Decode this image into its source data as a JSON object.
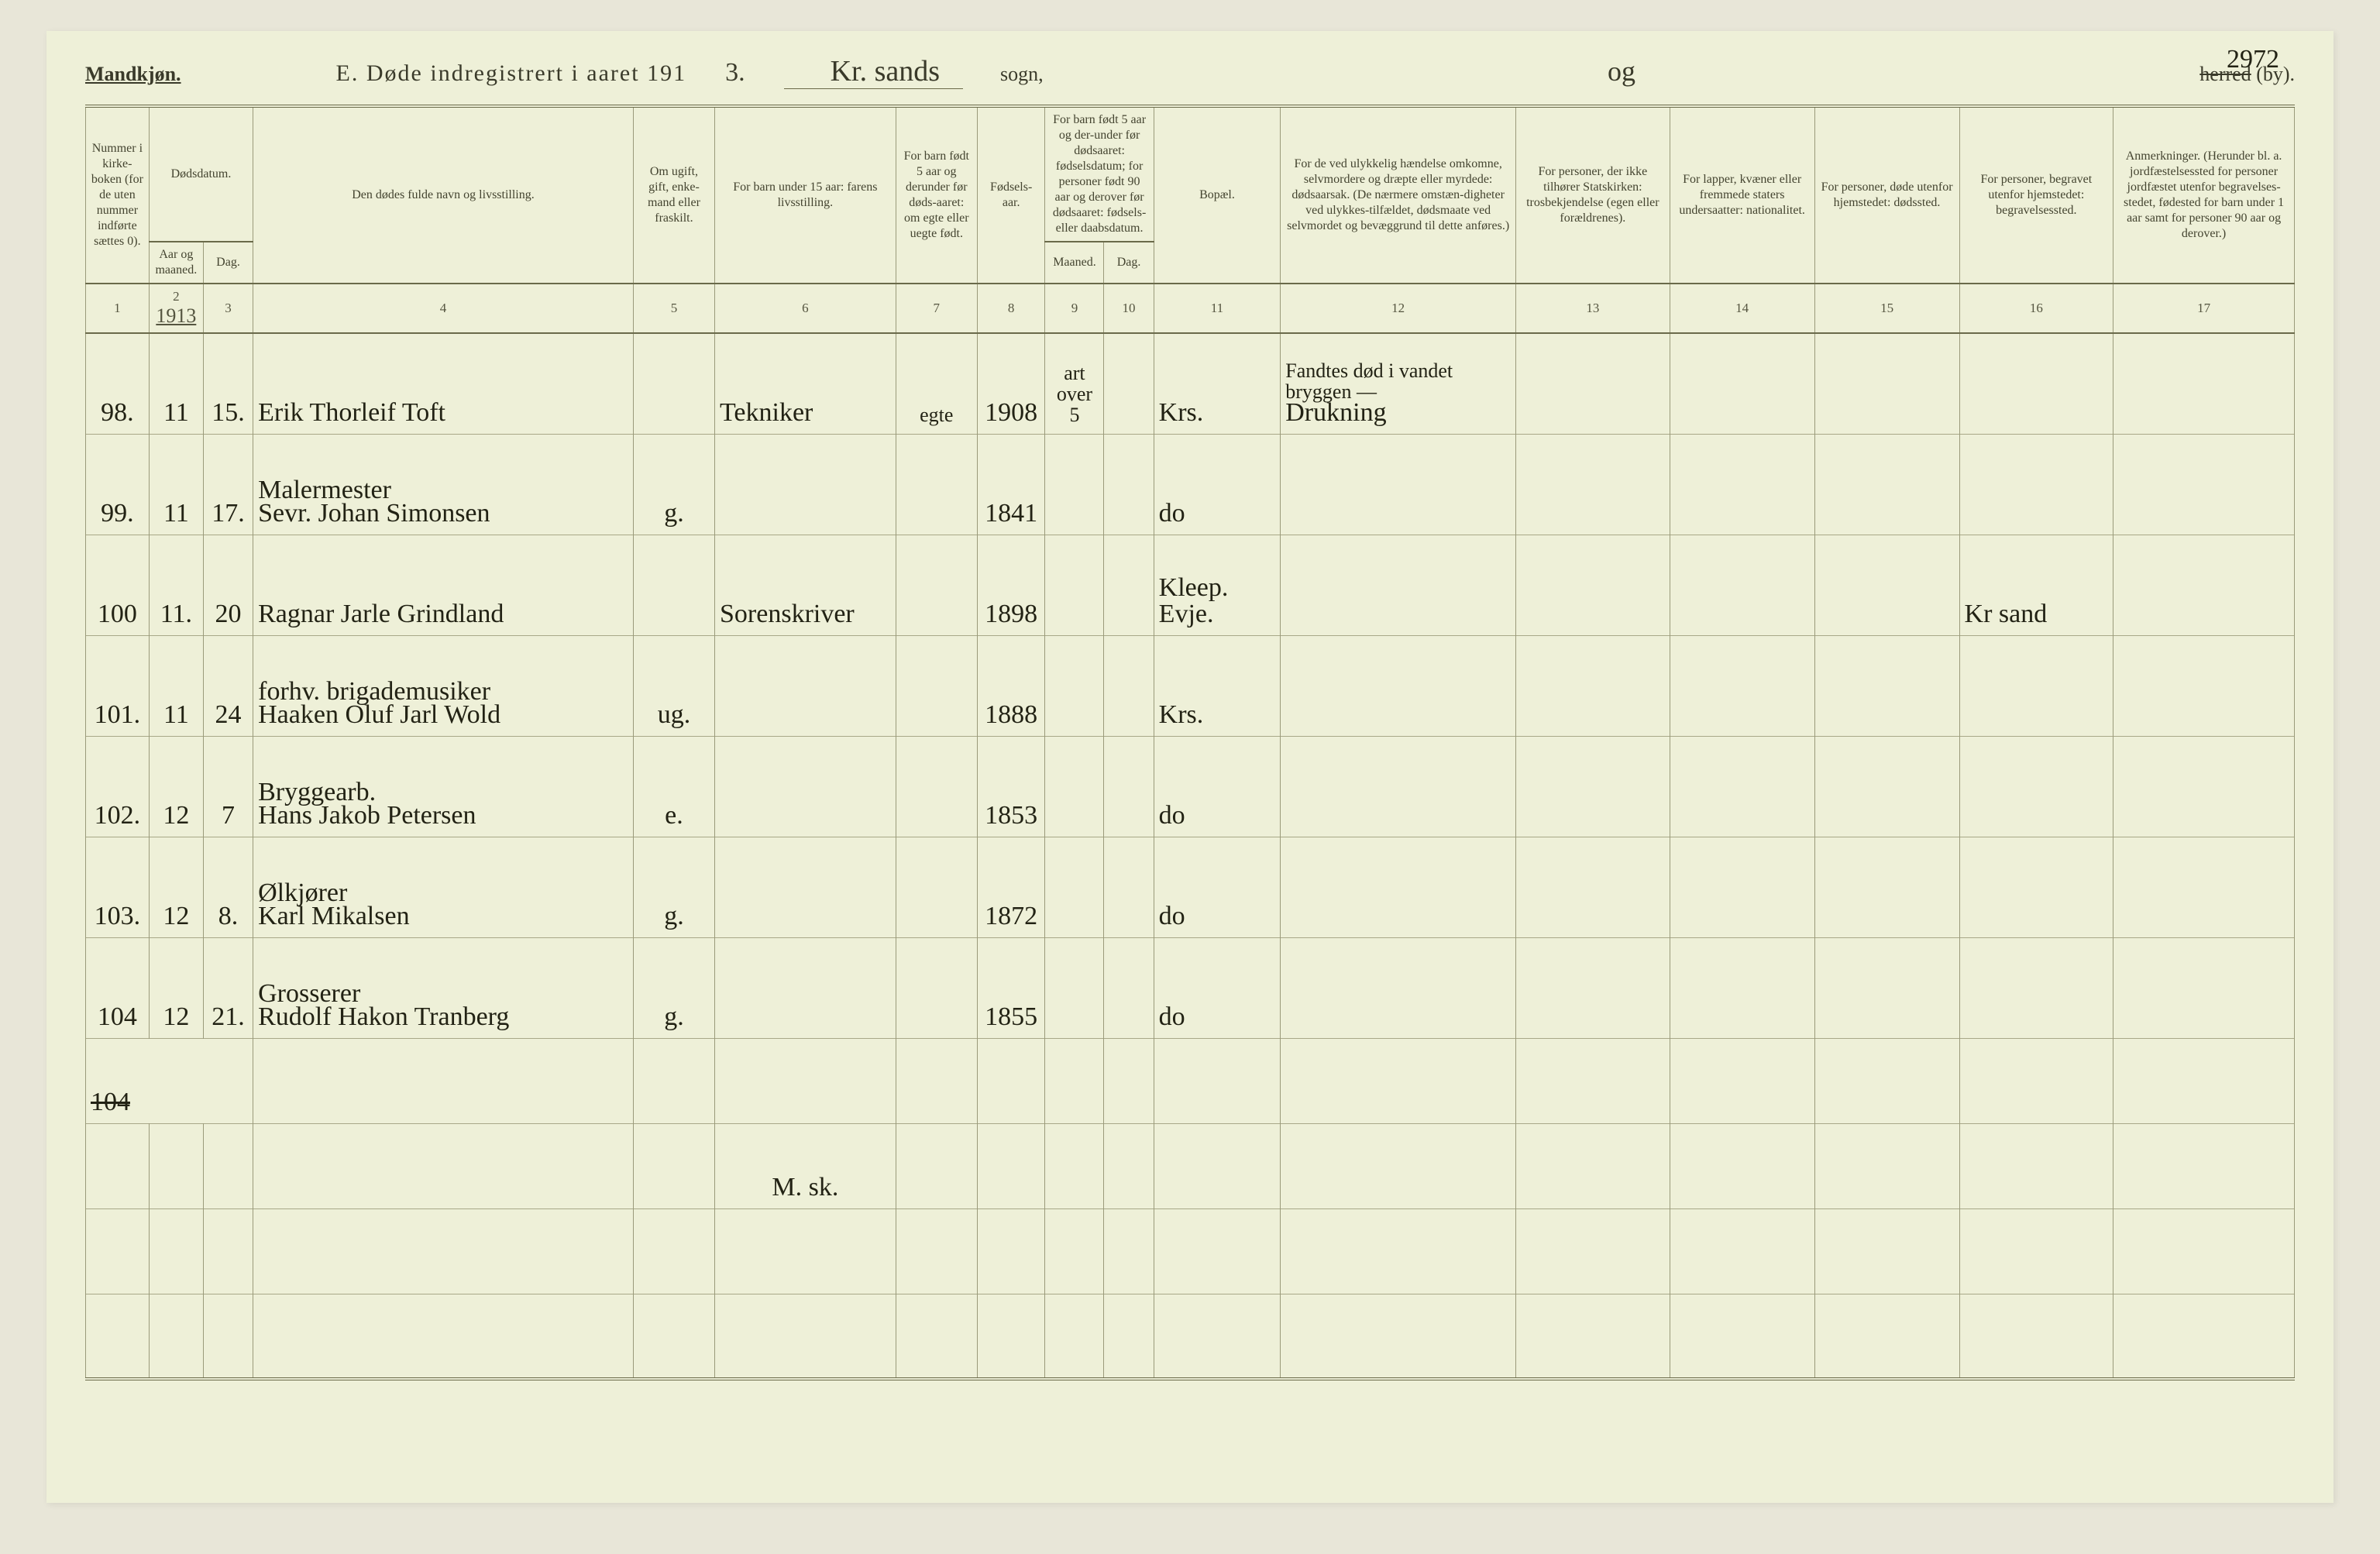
{
  "header": {
    "mandkjon": "Mandkjøn.",
    "title_prefix": "E.  Døde indregistrert i aaret 191",
    "year_suffix": "3.",
    "parish": "Kr. sands",
    "sogn": "sogn,",
    "og": "og",
    "herred_struck": "herred",
    "by_suffix": " (by).",
    "page_number": "2972"
  },
  "columns": {
    "c1": "Nummer i kirke-boken (for de uten nummer indførte sættes 0).",
    "c2_top": "Dødsdatum.",
    "c2a": "Aar og maaned.",
    "c2b": "Dag.",
    "c4": "Den dødes fulde navn og livsstilling.",
    "c5": "Om ugift, gift, enke-mand eller fraskilt.",
    "c6": "For barn under 15 aar: farens livsstilling.",
    "c7": "For barn født 5 aar og derunder før døds-aaret: om egte eller uegte født.",
    "c8": "Fødsels-aar.",
    "c9_top": "For barn født 5 aar og der-under før dødsaaret: fødselsdatum; for personer født 90 aar og derover før dødsaaret: fødsels- eller daabsdatum.",
    "c9a": "Maaned.",
    "c9b": "Dag.",
    "c11": "Bopæl.",
    "c12": "For de ved ulykkelig hændelse omkomne, selvmordere og dræpte eller myrdede: dødsaarsak. (De nærmere omstæn-digheter ved ulykkes-tilfældet, dødsmaate ved selvmordet og bevæggrund til dette anføres.)",
    "c13": "For personer, der ikke tilhører Statskirken: trosbekjendelse (egen eller forældrenes).",
    "c14": "For lapper, kvæner eller fremmede staters undersaatter: nationalitet.",
    "c15": "For personer, døde utenfor hjemstedet: dødssted.",
    "c16": "For personer, begravet utenfor hjemstedet: begravelsessted.",
    "c17": "Anmerkninger. (Herunder bl. a. jordfæstelsessted for personer jordfæstet utenfor begravelses-stedet, fødested for barn under 1 aar samt for personer 90 aar og derover.)"
  },
  "colnums": [
    "1",
    "2",
    "3",
    "4",
    "5",
    "6",
    "7",
    "8",
    "9",
    "10",
    "11",
    "12",
    "13",
    "14",
    "15",
    "16",
    "17"
  ],
  "year_under_col2": "1913",
  "rows": [
    {
      "num": "98.",
      "mon": "11",
      "day": "15.",
      "name_occ": "",
      "name": "Erik Thorleif Toft",
      "civil": "",
      "father": "Tekniker",
      "legit": "egte",
      "birth": "1908",
      "m9": "art over 5",
      "d10": "",
      "residence": "Krs.",
      "cause_top": "Fandtes død i vandet bryggen —",
      "cause": "Drukning",
      "c13": "",
      "c14": "",
      "c15": "",
      "c16": "",
      "c17": ""
    },
    {
      "num": "99.",
      "mon": "11",
      "day": "17.",
      "name_occ": "Malermester",
      "name": "Sevr. Johan Simonsen",
      "civil": "g.",
      "father": "",
      "legit": "",
      "birth": "1841",
      "m9": "",
      "d10": "",
      "residence": "do",
      "cause_top": "",
      "cause": "",
      "c13": "",
      "c14": "",
      "c15": "",
      "c16": "",
      "c17": ""
    },
    {
      "num": "100",
      "mon": "11.",
      "day": "20",
      "name_occ": "",
      "name": "Ragnar Jarle Grindland",
      "civil": "",
      "father": "Sorenskriver",
      "legit": "",
      "birth": "1898",
      "m9": "",
      "d10": "",
      "residence": "Kleep.\nEvje.",
      "cause_top": "",
      "cause": "",
      "c13": "",
      "c14": "",
      "c15": "",
      "c16": "Kr sand",
      "c17": ""
    },
    {
      "num": "101.",
      "mon": "11",
      "day": "24",
      "name_occ": "forhv. brigademusiker",
      "name": "Haaken Oluf Jarl Wold",
      "civil": "ug.",
      "father": "",
      "legit": "",
      "birth": "1888",
      "m9": "",
      "d10": "",
      "residence": "Krs.",
      "cause_top": "",
      "cause": "",
      "c13": "",
      "c14": "",
      "c15": "",
      "c16": "",
      "c17": ""
    },
    {
      "num": "102.",
      "mon": "12",
      "day": "7",
      "name_occ": "Bryggearb.",
      "name": "Hans Jakob Petersen",
      "civil": "e.",
      "father": "",
      "legit": "",
      "birth": "1853",
      "m9": "",
      "d10": "",
      "residence": "do",
      "cause_top": "",
      "cause": "",
      "c13": "",
      "c14": "",
      "c15": "",
      "c16": "",
      "c17": ""
    },
    {
      "num": "103.",
      "mon": "12",
      "day": "8.",
      "name_occ": "Ølkjører",
      "name": "Karl Mikalsen",
      "civil": "g.",
      "father": "",
      "legit": "",
      "birth": "1872",
      "m9": "",
      "d10": "",
      "residence": "do",
      "cause_top": "",
      "cause": "",
      "c13": "",
      "c14": "",
      "c15": "",
      "c16": "",
      "c17": ""
    },
    {
      "num": "104",
      "mon": "12",
      "day": "21.",
      "name_occ": "Grosserer",
      "name": "Rudolf Hakon Tranberg",
      "civil": "g.",
      "father": "",
      "legit": "",
      "birth": "1855",
      "m9": "",
      "d10": "",
      "residence": "do",
      "cause_top": "",
      "cause": "",
      "c13": "",
      "c14": "",
      "c15": "",
      "c16": "",
      "c17": ""
    }
  ],
  "total_row": "104",
  "bottom_scribble": "M. sk."
}
